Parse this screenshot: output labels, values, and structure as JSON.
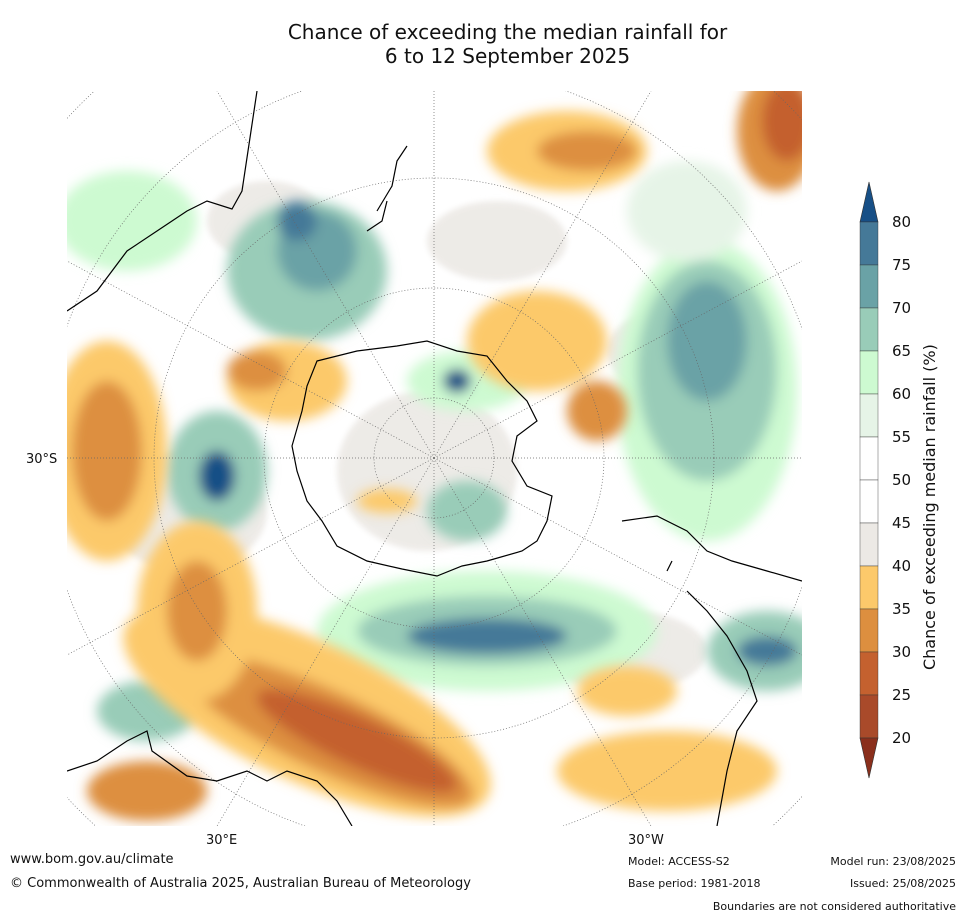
{
  "title_line1": "Chance of exceeding the median rainfall for",
  "title_line2": "6 to 12 September 2025",
  "map": {
    "lat_label": "30°S",
    "lon_labels": [
      "30°E",
      "30°W"
    ]
  },
  "colorbar": {
    "label": "Chance of exceeding median rainfall (%)",
    "ticks": [
      "20",
      "25",
      "30",
      "35",
      "40",
      "45",
      "50",
      "55",
      "60",
      "65",
      "70",
      "75",
      "80"
    ],
    "colors": [
      "#8a2f1c",
      "#a94a2a",
      "#c4612f",
      "#dd8f3f",
      "#fcc96b",
      "#ece9e5",
      "#ffffff",
      "#ffffff",
      "#e6f4e7",
      "#cdfad1",
      "#99ccb8",
      "#6aa2a6",
      "#457998",
      "#174f86"
    ]
  },
  "footer": {
    "website": "www.bom.gov.au/climate",
    "copyright": "© Commonwealth of Australia 2025, Australian Bureau of Meteorology",
    "model": "Model: ACCESS-S2",
    "base_period": "Base period: 1981-2018",
    "model_run": "Model run: 23/08/2025",
    "issued": "Issued: 25/08/2025",
    "disclaimer": "Boundaries are not considered authoritative"
  }
}
